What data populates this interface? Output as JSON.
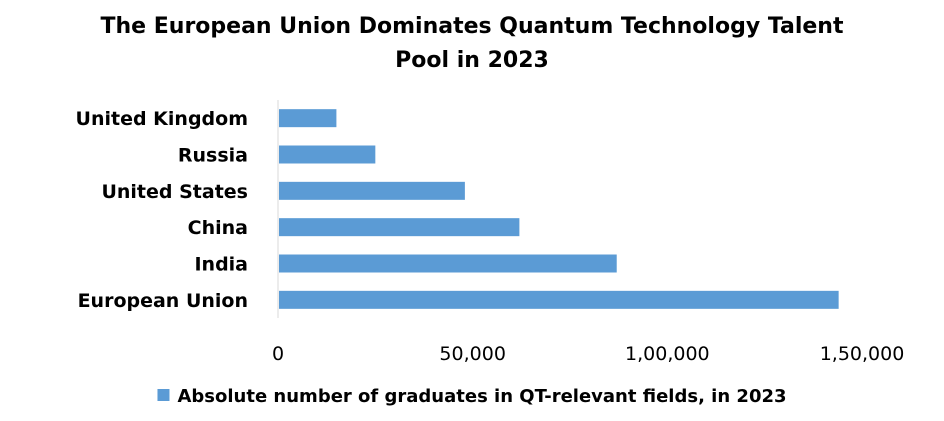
{
  "chart_data": {
    "type": "bar",
    "orientation": "horizontal",
    "title_lines": [
      "The European Union Dominates Quantum Technology Talent",
      "Pool in 2023"
    ],
    "categories": [
      "United Kingdom",
      "Russia",
      "United States",
      "China",
      "India",
      "European Union"
    ],
    "series": [
      {
        "name": "Absolute number of graduates in QT-relevant fields, in 2023",
        "values": [
          15000,
          25000,
          48000,
          62000,
          87000,
          144000
        ],
        "color": "#5B9BD5"
      }
    ],
    "x_ticks": [
      0,
      50000,
      100000,
      150000
    ],
    "x_tick_labels": [
      "0",
      "50,000",
      "1,00,000",
      "1,50,000"
    ],
    "xlim": [
      0,
      150000
    ],
    "grid": false,
    "legend_position": "bottom"
  }
}
